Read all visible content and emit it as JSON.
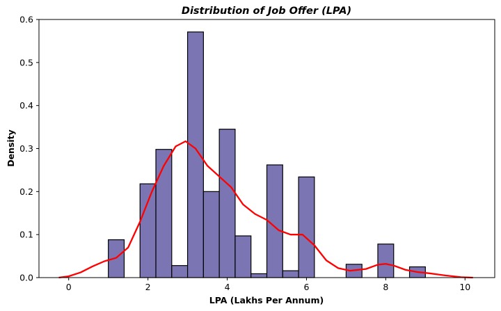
{
  "chart_data": {
    "type": "bar",
    "title": "Distribution of Job Offer (LPA)",
    "xlabel": "LPA (Lakhs Per Annum)",
    "ylabel": "Density",
    "xlim": [
      -0.75,
      10.75
    ],
    "ylim": [
      0,
      0.6
    ],
    "x_ticks": [
      "0",
      "2",
      "4",
      "6",
      "8",
      "10"
    ],
    "y_ticks": [
      "0.0",
      "0.1",
      "0.2",
      "0.3",
      "0.4",
      "0.5",
      "0.6"
    ],
    "grid": false,
    "bar_color": "#7b76b3",
    "bar_edge_color": "#000000",
    "kde_color": "#ff0000",
    "bins": [
      {
        "x0": 1.0,
        "x1": 1.4,
        "density": 0.088
      },
      {
        "x0": 1.8,
        "x1": 2.2,
        "density": 0.218
      },
      {
        "x0": 2.2,
        "x1": 2.6,
        "density": 0.298
      },
      {
        "x0": 2.6,
        "x1": 3.0,
        "density": 0.028
      },
      {
        "x0": 3.0,
        "x1": 3.4,
        "density": 0.571
      },
      {
        "x0": 3.4,
        "x1": 3.8,
        "density": 0.2
      },
      {
        "x0": 3.8,
        "x1": 4.2,
        "density": 0.345
      },
      {
        "x0": 4.2,
        "x1": 4.6,
        "density": 0.097
      },
      {
        "x0": 4.6,
        "x1": 5.0,
        "density": 0.009
      },
      {
        "x0": 5.0,
        "x1": 5.4,
        "density": 0.262
      },
      {
        "x0": 5.4,
        "x1": 5.8,
        "density": 0.016
      },
      {
        "x0": 5.8,
        "x1": 6.2,
        "density": 0.234
      },
      {
        "x0": 7.0,
        "x1": 7.4,
        "density": 0.031
      },
      {
        "x0": 7.8,
        "x1": 8.2,
        "density": 0.078
      },
      {
        "x0": 8.6,
        "x1": 9.0,
        "density": 0.025
      }
    ],
    "kde": {
      "x": [
        -0.25,
        0.0,
        0.3,
        0.6,
        0.9,
        1.2,
        1.5,
        1.8,
        2.1,
        2.4,
        2.7,
        2.95,
        3.2,
        3.5,
        3.8,
        4.1,
        4.4,
        4.7,
        5.0,
        5.3,
        5.6,
        5.9,
        6.2,
        6.5,
        6.8,
        7.1,
        7.5,
        7.8,
        8.0,
        8.2,
        8.5,
        8.8,
        9.1,
        9.5,
        9.9,
        10.2
      ],
      "y": [
        0.0,
        0.003,
        0.012,
        0.026,
        0.038,
        0.046,
        0.07,
        0.13,
        0.2,
        0.26,
        0.305,
        0.317,
        0.3,
        0.26,
        0.235,
        0.21,
        0.17,
        0.148,
        0.134,
        0.11,
        0.1,
        0.1,
        0.075,
        0.04,
        0.022,
        0.016,
        0.02,
        0.03,
        0.032,
        0.028,
        0.018,
        0.013,
        0.01,
        0.005,
        0.001,
        0.0
      ]
    }
  }
}
